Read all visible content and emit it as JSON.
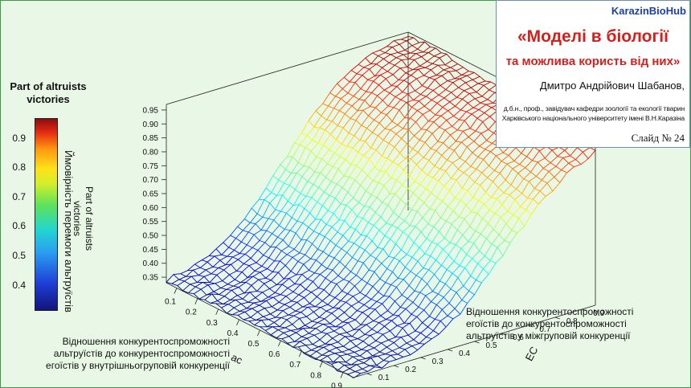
{
  "header": {
    "brand": "KarazinBioHub",
    "title_line1": "«Моделі в біології",
    "title_line2": "та можлива користь від них»",
    "author": "Дмитро Андрійович Шабанов,",
    "affiliation_line1": "д.б.н., проф., завідувач кафедри зоології та екології тварин",
    "affiliation_line2": "Харківського національного університету імені В.Н.Каразіна",
    "slide_number": "Слайд № 24"
  },
  "colors": {
    "background": "#e9f7e6",
    "title_red": "#d4201d",
    "brand_blue": "#1a3fa8"
  },
  "chart_data": {
    "type": "surface3d",
    "colorbar": {
      "title_line1": "Part of altruists",
      "title_line2": "victories",
      "ticks": [
        "0.9",
        "0.8",
        "0.7",
        "0.6",
        "0.5",
        "0.4"
      ],
      "range": [
        0.32,
        0.97
      ],
      "colormap": "jet"
    },
    "z_axis": {
      "label_line1": "Part of altruists",
      "label_line2": "victories",
      "label_ua": "Ймовірність перемоги альтруїстів",
      "ticks": [
        "0.95",
        "0.90",
        "0.85",
        "0.80",
        "0.75",
        "0.70",
        "0.65",
        "0.60",
        "0.55",
        "0.50",
        "0.45",
        "0.40",
        "0.35"
      ],
      "range": [
        0.33,
        0.97
      ]
    },
    "x_axis": {
      "label": "ac",
      "ticks": [
        "0.1",
        "0.2",
        "0.3",
        "0.4",
        "0.5",
        "0.6",
        "0.7",
        "0.8",
        "0.9"
      ],
      "range": [
        0.05,
        0.95
      ],
      "description_line1": "Відношення конкурентоспроможності",
      "description_line2": "альтруїстів до конкурентоспроможності",
      "description_line3": "егоїстів у внутрішньогруповій конкуренції"
    },
    "y_axis": {
      "label": "EC",
      "ticks": [
        "0.9",
        "0.8",
        "0.7",
        "0.6",
        "0.5",
        "0.4",
        "0.3",
        "0.2",
        "0.1"
      ],
      "range": [
        0.05,
        0.95
      ],
      "description_line1": "Відношення конкурентоспроможності",
      "description_line2": "егоїстів до конкурентоспроможності",
      "description_line3": "альтруїстів у міжгруповій конкуренції"
    },
    "surface_profile": {
      "ec_values": [
        0.05,
        0.15,
        0.25,
        0.35,
        0.45,
        0.55,
        0.65,
        0.75,
        0.85,
        0.95
      ],
      "z_at_low_ac": [
        0.34,
        0.36,
        0.4,
        0.48,
        0.6,
        0.72,
        0.83,
        0.9,
        0.94,
        0.96
      ],
      "z_at_high_ac": [
        0.33,
        0.34,
        0.35,
        0.38,
        0.45,
        0.55,
        0.66,
        0.76,
        0.84,
        0.88
      ]
    },
    "grid": false
  }
}
